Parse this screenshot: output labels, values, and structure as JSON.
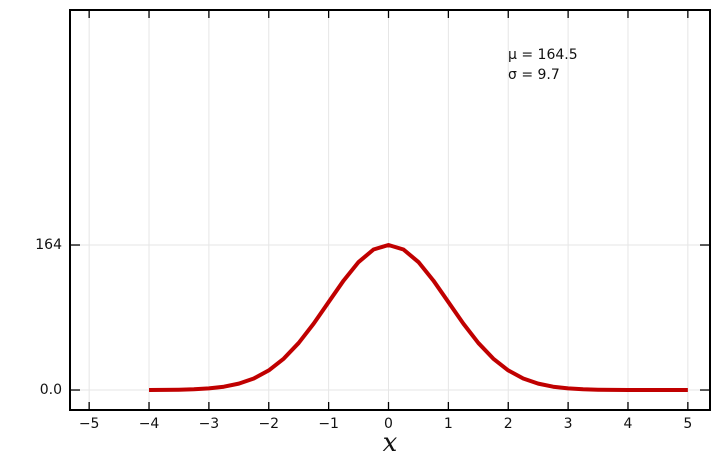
{
  "chart_data": {
    "type": "line",
    "annotations": [
      "μ = 164.5",
      "σ = 9.7"
    ],
    "x_label": "x",
    "x": [
      -4,
      -3.75,
      -3.5,
      -3.25,
      -3,
      -2.75,
      -2.5,
      -2.25,
      -2,
      -1.75,
      -1.5,
      -1.25,
      -1,
      -0.75,
      -0.5,
      -0.25,
      0,
      0.25,
      0.5,
      0.75,
      1,
      1.25,
      1.5,
      1.75,
      2,
      2.25,
      2.5,
      2.75,
      3,
      3.25,
      3.5,
      3.75,
      4,
      4.25,
      4.5,
      4.75,
      5
    ],
    "series": [
      {
        "color": "#c00000",
        "values": [
          0.05,
          0.15,
          0.36,
          0.83,
          1.82,
          3.74,
          7.21,
          13.05,
          22.2,
          35.47,
          53.24,
          75.08,
          99.47,
          123.79,
          144.73,
          158.95,
          164,
          158.95,
          144.73,
          123.79,
          99.47,
          75.08,
          53.24,
          35.47,
          22.2,
          13.05,
          7.21,
          3.74,
          1.82,
          0.83,
          0.36,
          0.15,
          0.05,
          0.02,
          0.01,
          0,
          0
        ]
      }
    ],
    "xlim": [
      -5.32,
      5.37
    ],
    "ylim": [
      -22.6,
      429.8
    ],
    "xticks": [
      {
        "value": -5,
        "label": "−5"
      },
      {
        "value": -4,
        "label": "−4"
      },
      {
        "value": -3,
        "label": "−3"
      },
      {
        "value": -2,
        "label": "−2"
      },
      {
        "value": -1,
        "label": "−1"
      },
      0,
      1,
      2,
      3,
      4,
      5
    ],
    "yticks": [
      {
        "value": 0,
        "label": "0.0"
      },
      164
    ],
    "grid": true
  }
}
